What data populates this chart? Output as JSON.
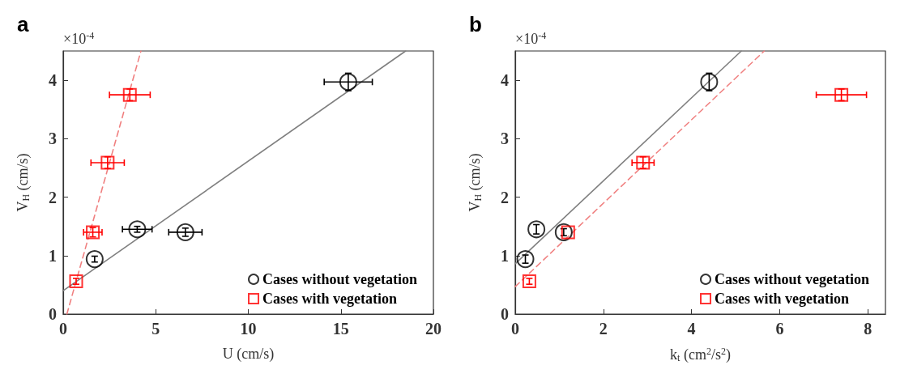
{
  "chart_data": [
    {
      "type": "scatter",
      "title": "a",
      "annotations": [
        "×10$^{-4}$"
      ],
      "xlabel": "U (cm/s)",
      "ylabel": "V$_{H}$ (cm/s)",
      "xlim": [
        0,
        20
      ],
      "xticks": [
        0,
        5,
        10,
        15,
        20
      ],
      "ylim": [
        0,
        4.5
      ],
      "yticks": [
        0,
        1,
        2,
        3,
        4
      ],
      "grid": false,
      "legend": "bottom right",
      "series": [
        {
          "name": "Cases without vegetation",
          "color": "#000000",
          "marker": "circle",
          "x": [
            1.7,
            4.0,
            6.6,
            15.4
          ],
          "values": [
            0.94,
            1.45,
            1.4,
            3.97
          ],
          "errors": [
            0.05,
            0.05,
            0.07,
            0.15
          ],
          "xerrors": [
            null,
            0.8,
            0.9,
            1.3
          ]
        },
        {
          "name": "Cases with vegetation",
          "color": "#ff0000",
          "marker": "square",
          "x": [
            0.7,
            1.6,
            2.4,
            3.6
          ],
          "values": [
            0.56,
            1.4,
            2.59,
            3.75
          ],
          "errors": [
            0.05,
            0.08,
            0.1,
            0.1
          ],
          "xerrors": [
            null,
            0.5,
            0.9,
            1.1
          ]
        },
        {
          "type": "line",
          "color": "#808080",
          "line_style": "solid",
          "x": [
            0,
            18.5
          ],
          "values": [
            0.4,
            4.5
          ]
        },
        {
          "type": "line",
          "color": "#f08080",
          "line_style": "dashed",
          "x": [
            0.2,
            4.2
          ],
          "values": [
            0,
            4.5
          ]
        }
      ]
    },
    {
      "type": "scatter",
      "title": "b",
      "annotations": [
        "×10$^{-4}$"
      ],
      "xlabel": "k$_{t}$ (cm$^{2}$/s$^{2}$)",
      "ylabel": "V$_{H}$ (cm/s)",
      "xlim": [
        0,
        8.4
      ],
      "xticks": [
        0,
        2,
        4,
        6,
        8
      ],
      "ylim": [
        0,
        4.5
      ],
      "yticks": [
        0,
        1,
        2,
        3,
        4
      ],
      "grid": false,
      "legend": "bottom right",
      "series": [
        {
          "name": "Cases without vegetation",
          "color": "#000000",
          "marker": "circle",
          "x": [
            0.23,
            0.48,
            1.1,
            4.4
          ],
          "values": [
            0.94,
            1.45,
            1.4,
            3.97
          ],
          "errors": [
            0.07,
            0.08,
            0.06,
            0.15
          ]
        },
        {
          "name": "Cases with vegetation",
          "color": "#ff0000",
          "marker": "square",
          "x": [
            0.32,
            1.2,
            2.9,
            7.4
          ],
          "values": [
            0.56,
            1.4,
            2.59,
            3.75
          ],
          "errors": [
            0.05,
            null,
            0.1,
            0.1
          ],
          "xerrors": [
            null,
            null,
            0.25,
            0.57
          ]
        },
        {
          "type": "line",
          "color": "#808080",
          "line_style": "solid",
          "x": [
            0,
            5.13
          ],
          "values": [
            0.86,
            4.5
          ]
        },
        {
          "type": "line",
          "color": "#f08080",
          "line_style": "dashed",
          "x": [
            0,
            5.65
          ],
          "values": [
            0.47,
            4.5
          ]
        }
      ]
    }
  ]
}
